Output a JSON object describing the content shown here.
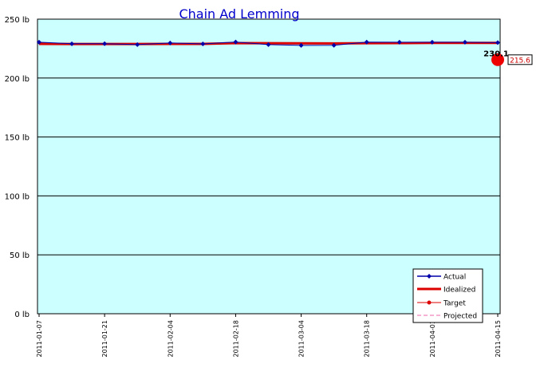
{
  "chart_data": {
    "type": "line",
    "title": "Chain Ad Lemming",
    "xlabel": "",
    "ylabel": "",
    "ylim": [
      0,
      250
    ],
    "y_unit": "lb",
    "y_ticks": [
      "0 lb",
      "50 lb",
      "100 lb",
      "150 lb",
      "200 lb",
      "250 lb"
    ],
    "x_ticks": [
      "2011-01-07",
      "2011-01-21",
      "2011-02-04",
      "2011-02-18",
      "2011-03-04",
      "2011-03-18",
      "2011-04-01",
      "2011-04-15"
    ],
    "x": [
      "2011-01-07",
      "2011-01-14",
      "2011-01-21",
      "2011-01-28",
      "2011-02-04",
      "2011-02-11",
      "2011-02-18",
      "2011-02-25",
      "2011-03-04",
      "2011-03-11",
      "2011-03-18",
      "2011-03-25",
      "2011-04-01",
      "2011-04-08",
      "2011-04-15"
    ],
    "series": [
      {
        "name": "Actual",
        "color": "#0000aa",
        "values": [
          230.4,
          229.1,
          229.2,
          228.4,
          229.8,
          229.0,
          230.6,
          228.4,
          227.7,
          227.8,
          230.5,
          230.4,
          230.4,
          230.4,
          230.1
        ]
      },
      {
        "name": "Idealized",
        "color": "#dd0000",
        "values": [
          229.0,
          228.9,
          228.9,
          228.9,
          229.0,
          229.0,
          229.7,
          229.6,
          229.5,
          229.4,
          229.6,
          229.7,
          229.8,
          229.9,
          229.9
        ]
      }
    ],
    "legend": {
      "placement": "bottom-right",
      "entries": [
        "Actual",
        "Idealized",
        "Target",
        "Projected"
      ]
    },
    "annotations": {
      "last_actual_label": "230.1",
      "target_value": 215.6,
      "target_label": "215.6"
    },
    "plot_background": "#ccffff",
    "grid": true
  }
}
